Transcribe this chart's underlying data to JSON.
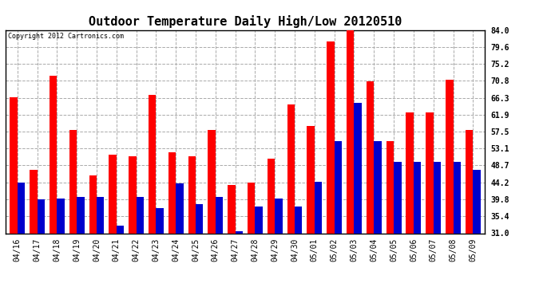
{
  "title": "Outdoor Temperature Daily High/Low 20120510",
  "copyright": "Copyright 2012 Cartronics.com",
  "dates": [
    "04/16",
    "04/17",
    "04/18",
    "04/19",
    "04/20",
    "04/21",
    "04/22",
    "04/23",
    "04/24",
    "04/25",
    "04/26",
    "04/27",
    "04/28",
    "04/29",
    "04/30",
    "05/01",
    "05/02",
    "05/03",
    "05/04",
    "05/05",
    "05/06",
    "05/07",
    "05/08",
    "05/09"
  ],
  "highs": [
    66.5,
    47.5,
    72.0,
    58.0,
    46.0,
    51.5,
    51.0,
    67.0,
    52.0,
    51.0,
    58.0,
    43.5,
    44.2,
    50.5,
    64.5,
    59.0,
    81.0,
    84.5,
    70.5,
    55.0,
    62.5,
    62.5,
    71.0,
    58.0
  ],
  "lows": [
    44.2,
    39.8,
    40.0,
    40.5,
    40.5,
    33.0,
    40.5,
    37.5,
    44.0,
    38.5,
    40.5,
    31.5,
    38.0,
    40.0,
    38.0,
    44.5,
    55.0,
    65.0,
    55.0,
    49.5,
    49.5,
    49.5,
    49.5,
    47.5
  ],
  "high_color": "#ff0000",
  "low_color": "#0000cc",
  "background_color": "#ffffff",
  "yticks": [
    31.0,
    35.4,
    39.8,
    44.2,
    48.7,
    53.1,
    57.5,
    61.9,
    66.3,
    70.8,
    75.2,
    79.6,
    84.0
  ],
  "ymin": 31.0,
  "ymax": 84.0,
  "grid_color": "#aaaaaa",
  "title_fontsize": 11,
  "tick_fontsize": 7,
  "bar_width": 0.38,
  "copyright_fontsize": 6
}
